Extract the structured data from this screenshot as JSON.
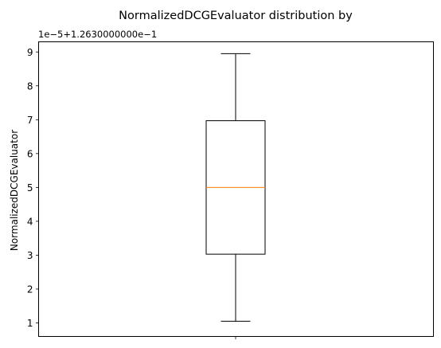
{
  "chart_data": {
    "type": "box",
    "title": "NormalizedDCGEvaluator distribution by",
    "xlabel": "",
    "ylabel": "NormalizedDCGEvaluator",
    "offset_label": "1e−5+1.2630000000e−1",
    "y_ticks": [
      1,
      2,
      3,
      4,
      5,
      6,
      7,
      8,
      9
    ],
    "y_tick_labels": [
      "1",
      "2",
      "3",
      "4",
      "5",
      "6",
      "7",
      "8",
      "9"
    ],
    "ylim": [
      0.6,
      9.3
    ],
    "grid": false,
    "box": {
      "whisker_low": 1.05,
      "q1": 3.03,
      "median": 5.0,
      "q3": 6.97,
      "whisker_high": 8.95
    },
    "colors": {
      "median": "#ff7f0e",
      "box": "#000000"
    }
  }
}
